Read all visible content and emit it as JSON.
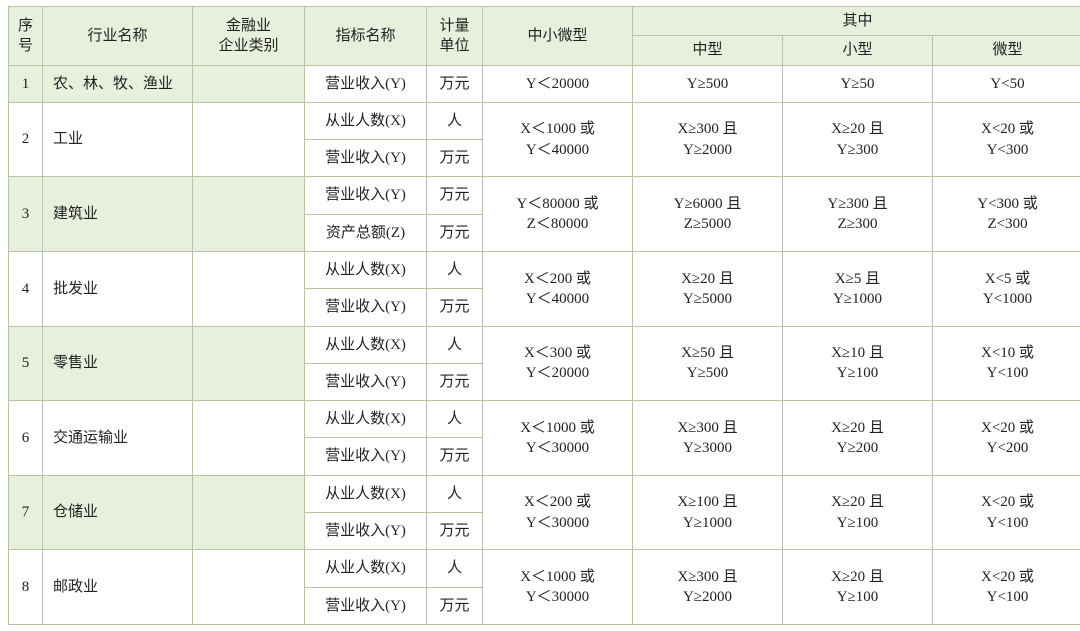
{
  "header": {
    "seq": "序号",
    "industry": "行业名称",
    "finance_cat": "金融业\n企业类别",
    "indicator": "指标名称",
    "unit": "计量\n单位",
    "sme": "中小微型",
    "of_which": "其中",
    "medium": "中型",
    "small": "小型",
    "micro": "微型"
  },
  "indicators": {
    "employees": "从业人数(X)",
    "revenue": "营业收入(Y)",
    "assets": "资产总额(Z)"
  },
  "units": {
    "person": "人",
    "wan": "万元"
  },
  "rows": [
    {
      "seq": "1",
      "name": "农、林、牧、渔业",
      "alt": true,
      "lines": [
        {
          "indicator": "营业收入(Y)",
          "unit": "万元"
        }
      ],
      "sme": "Y＜20000",
      "medium": "Y≥500",
      "small": "Y≥50",
      "micro": "Y<50"
    },
    {
      "seq": "2",
      "name": "工业",
      "alt": false,
      "lines": [
        {
          "indicator": "从业人数(X)",
          "unit": "人"
        },
        {
          "indicator": "营业收入(Y)",
          "unit": "万元"
        }
      ],
      "sme": "X＜1000 或\nY＜40000",
      "medium": "X≥300 且\nY≥2000",
      "small": "X≥20 且\nY≥300",
      "micro": "X<20 或\nY<300"
    },
    {
      "seq": "3",
      "name": "建筑业",
      "alt": true,
      "lines": [
        {
          "indicator": "营业收入(Y)",
          "unit": "万元"
        },
        {
          "indicator": "资产总额(Z)",
          "unit": "万元"
        }
      ],
      "sme": "Y＜80000 或\nZ＜80000",
      "medium": "Y≥6000 且\nZ≥5000",
      "small": "Y≥300 且\nZ≥300",
      "micro": "Y<300 或\nZ<300"
    },
    {
      "seq": "4",
      "name": "批发业",
      "alt": false,
      "lines": [
        {
          "indicator": "从业人数(X)",
          "unit": "人"
        },
        {
          "indicator": "营业收入(Y)",
          "unit": "万元"
        }
      ],
      "sme": "X＜200 或\nY＜40000",
      "medium": "X≥20 且\nY≥5000",
      "small": "X≥5 且\nY≥1000",
      "micro": "X<5 或\nY<1000"
    },
    {
      "seq": "5",
      "name": "零售业",
      "alt": true,
      "lines": [
        {
          "indicator": "从业人数(X)",
          "unit": "人"
        },
        {
          "indicator": "营业收入(Y)",
          "unit": "万元"
        }
      ],
      "sme": "X＜300 或\nY＜20000",
      "medium": "X≥50 且\nY≥500",
      "small": "X≥10 且\nY≥100",
      "micro": "X<10 或\nY<100"
    },
    {
      "seq": "6",
      "name": "交通运输业",
      "alt": false,
      "lines": [
        {
          "indicator": "从业人数(X)",
          "unit": "人"
        },
        {
          "indicator": "营业收入(Y)",
          "unit": "万元"
        }
      ],
      "sme": "X＜1000 或\nY＜30000",
      "medium": "X≥300 且\nY≥3000",
      "small": "X≥20 且\nY≥200",
      "micro": "X<20 或\nY<200"
    },
    {
      "seq": "7",
      "name": "仓储业",
      "alt": true,
      "lines": [
        {
          "indicator": "从业人数(X)",
          "unit": "人"
        },
        {
          "indicator": "营业收入(Y)",
          "unit": "万元"
        }
      ],
      "sme": "X＜200 或\nY＜30000",
      "medium": "X≥100 且\nY≥1000",
      "small": "X≥20 且\nY≥100",
      "micro": "X<20 或\nY<100"
    },
    {
      "seq": "8",
      "name": "邮政业",
      "alt": false,
      "lines": [
        {
          "indicator": "从业人数(X)",
          "unit": "人"
        },
        {
          "indicator": "营业收入(Y)",
          "unit": "万元"
        }
      ],
      "sme": "X＜1000 或\nY＜30000",
      "medium": "X≥300 且\nY≥2000",
      "small": "X≥20 且\nY≥100",
      "micro": "X<20 或\nY<100"
    }
  ],
  "colors": {
    "header_bg": "#e8efdc",
    "border": "#b7c4a2",
    "text": "#222222",
    "bg": "#ffffff"
  }
}
